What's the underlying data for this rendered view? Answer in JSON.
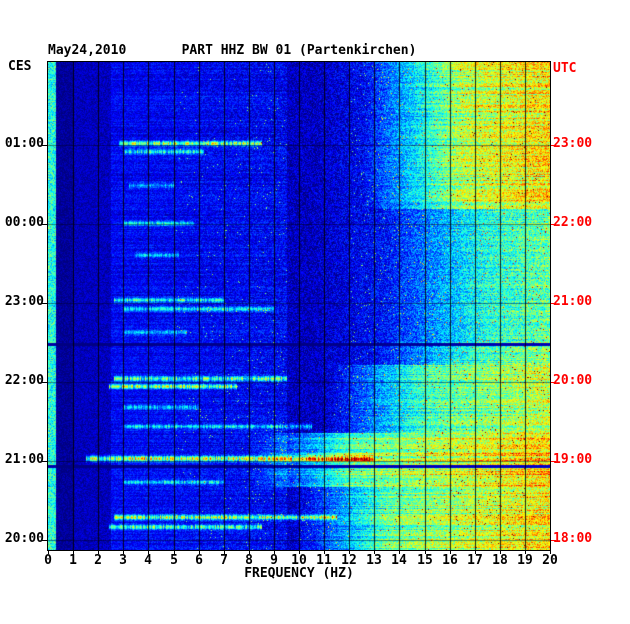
{
  "chart_data": {
    "type": "heatmap",
    "title": "PART HHZ BW 01 (Partenkirchen)",
    "date_label": "May24,2010",
    "xlabel": "FREQUENCY (HZ)",
    "xlim": [
      0,
      20
    ],
    "x_ticks": [
      "0",
      "1",
      "2",
      "3",
      "4",
      "5",
      "6",
      "7",
      "8",
      "9",
      "10",
      "11",
      "12",
      "13",
      "14",
      "15",
      "16",
      "17",
      "18",
      "19",
      "20"
    ],
    "left_axis": {
      "label": "CES",
      "color": "#000000"
    },
    "right_axis": {
      "label": "UTC",
      "color": "#ff0000"
    },
    "time_ticks": [
      {
        "frac": 0.17,
        "left": "01:00",
        "right": "23:00"
      },
      {
        "frac": 0.332,
        "left": "00:00",
        "right": "22:00"
      },
      {
        "frac": 0.494,
        "left": "23:00",
        "right": "21:00"
      },
      {
        "frac": 0.656,
        "left": "22:00",
        "right": "20:00"
      },
      {
        "frac": 0.818,
        "left": "21:00",
        "right": "19:00"
      },
      {
        "frac": 0.98,
        "left": "20:00",
        "right": "18:00"
      }
    ],
    "colormap": "jet",
    "grid": {
      "vertical_hz_step": 1,
      "horizontal_hour_lines": true
    },
    "colors": {
      "background": "#ffffff",
      "axis": "#000000",
      "utc_labels": "#ff0000",
      "deep_blue_floor": "#000080"
    },
    "intensity_model": {
      "base": 0.06,
      "dc_f": 0.28,
      "dc_level": 0.52,
      "low_gap": 0.02,
      "mid_f0": 2.5,
      "mid_f1": 9.5,
      "mid_boost": 0.09,
      "ramp_start": 10.5,
      "ramp_max": 0.26,
      "noise_amp": 0.15,
      "speckle_threshold": 0.986,
      "speckle_boost": 0.3,
      "time_bands": [
        {
          "t0": 0.0,
          "t1": 0.3,
          "f0": 12.5,
          "f1": 20,
          "boost": 0.42
        },
        {
          "t0": 0.3,
          "t1": 0.57,
          "f0": 13.5,
          "f1": 20,
          "boost": 0.2
        },
        {
          "t0": 0.57,
          "t1": 0.62,
          "f0": 13.0,
          "f1": 20,
          "boost": 0.25
        },
        {
          "t0": 0.62,
          "t1": 0.76,
          "f0": 11.0,
          "f1": 20,
          "boost": 0.33
        },
        {
          "t0": 0.76,
          "t1": 0.87,
          "f0": 8.0,
          "f1": 20,
          "boost": 0.5
        },
        {
          "t0": 0.87,
          "t1": 1.01,
          "f0": 9.5,
          "f1": 20,
          "boost": 0.42
        }
      ],
      "streaks": [
        {
          "t": 0.166,
          "f0": 2.8,
          "f1": 8.5,
          "amp": 0.5
        },
        {
          "t": 0.183,
          "f0": 3.0,
          "f1": 6.2,
          "amp": 0.35
        },
        {
          "t": 0.252,
          "f0": 3.2,
          "f1": 5.0,
          "amp": 0.22
        },
        {
          "t": 0.33,
          "f0": 3.0,
          "f1": 5.8,
          "amp": 0.3
        },
        {
          "t": 0.395,
          "f0": 3.4,
          "f1": 5.2,
          "amp": 0.22
        },
        {
          "t": 0.487,
          "f0": 2.6,
          "f1": 7.0,
          "amp": 0.34
        },
        {
          "t": 0.505,
          "f0": 3.0,
          "f1": 9.0,
          "amp": 0.28
        },
        {
          "t": 0.553,
          "f0": 3.0,
          "f1": 5.5,
          "amp": 0.22
        },
        {
          "t": 0.648,
          "f0": 2.6,
          "f1": 9.5,
          "amp": 0.45
        },
        {
          "t": 0.664,
          "f0": 2.4,
          "f1": 7.5,
          "amp": 0.5
        },
        {
          "t": 0.706,
          "f0": 3.0,
          "f1": 6.0,
          "amp": 0.28
        },
        {
          "t": 0.746,
          "f0": 3.0,
          "f1": 10.5,
          "amp": 0.3
        },
        {
          "t": 0.812,
          "f0": 1.5,
          "f1": 13.0,
          "amp": 0.58,
          "w": 2.0
        },
        {
          "t": 0.86,
          "f0": 3.0,
          "f1": 7.0,
          "amp": 0.3
        },
        {
          "t": 0.932,
          "f0": 2.6,
          "f1": 11.5,
          "amp": 0.5
        },
        {
          "t": 0.952,
          "f0": 2.4,
          "f1": 8.5,
          "amp": 0.42
        }
      ],
      "dark_rows": [
        0.578,
        0.828
      ]
    }
  }
}
